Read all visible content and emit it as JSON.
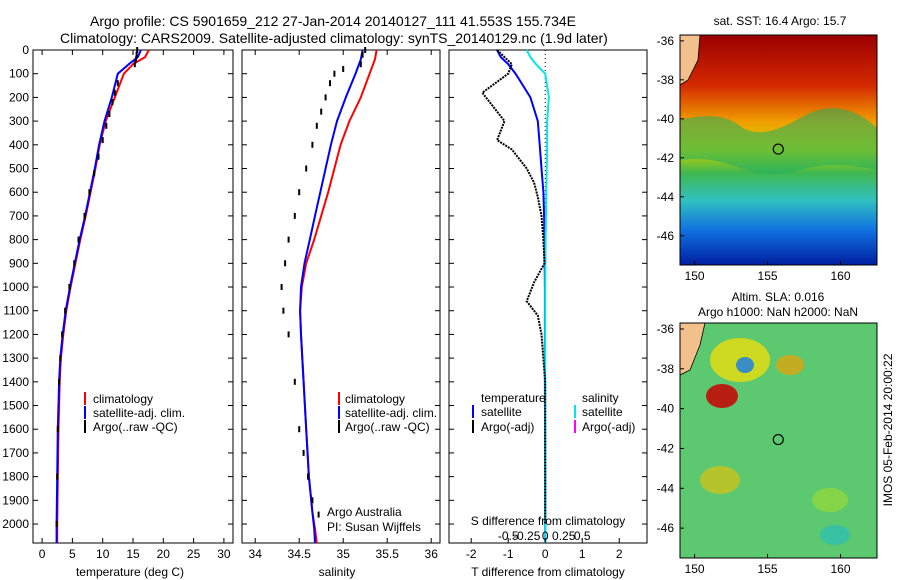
{
  "header": {
    "title_line1": "Argo profile: CS 5901659_212 27-Jan-2014 20140127_111 41.553S 155.734E",
    "title_line2": "Climatology: CARS2009. Satellite-adjusted climatology: synTS_20140129.nc (1.9d later)"
  },
  "colors": {
    "climatology": "#ff0000",
    "satellite": "#0000ff",
    "argo": "#000000",
    "sal_satellite": "#00e5ee",
    "sal_argo": "#ff00ff"
  },
  "chart_data": [
    {
      "type": "line",
      "id": "temperature",
      "xlabel": "temperature (deg C)",
      "ylabel": "",
      "xlim": [
        -1.5,
        31.5
      ],
      "ylim": [
        2080,
        0
      ],
      "xticks": [
        0,
        5,
        10,
        15,
        20,
        25,
        30
      ],
      "xtick_labels": [
        "0",
        "5",
        "10",
        "15",
        "20",
        "25",
        "30"
      ],
      "yticks": [
        0,
        100,
        200,
        300,
        400,
        500,
        600,
        700,
        800,
        900,
        1000,
        1100,
        1200,
        1300,
        1400,
        1500,
        1600,
        1700,
        1800,
        1900,
        2000
      ],
      "ytick_labels": [
        "0",
        "100",
        "200",
        "300",
        "400",
        "500",
        "600",
        "700",
        "800",
        "900",
        "1000",
        "1100",
        "1200",
        "1300",
        "1400",
        "1500",
        "1600",
        "1700",
        "1800",
        "1900",
        "2000"
      ],
      "legend": [
        "climatology",
        "satellite-adj. clim.",
        "Argo(..raw -QC)"
      ],
      "series": [
        {
          "name": "climatology",
          "style": "line",
          "color": "#ff0000",
          "x": [
            17.6,
            17.0,
            15.0,
            13.5,
            12.0,
            10.5,
            9.5,
            8.8,
            8.0,
            7.2,
            6.3,
            5.5,
            4.7,
            4.0,
            3.5,
            3.1,
            2.9,
            2.7,
            2.6,
            2.5,
            2.5
          ],
          "y": [
            0,
            30,
            60,
            100,
            200,
            300,
            400,
            500,
            600,
            700,
            800,
            900,
            1000,
            1100,
            1200,
            1300,
            1400,
            1600,
            1800,
            2000,
            2080
          ]
        },
        {
          "name": "satellite-adj. clim.",
          "style": "line",
          "color": "#0000ff",
          "x": [
            16.3,
            15.8,
            14.3,
            12.5,
            11.5,
            10.3,
            9.4,
            8.7,
            7.9,
            7.1,
            6.2,
            5.4,
            4.6,
            3.9,
            3.4,
            3.0,
            2.8,
            2.6,
            2.5,
            2.4,
            2.4
          ],
          "y": [
            0,
            30,
            60,
            100,
            200,
            300,
            400,
            500,
            600,
            700,
            800,
            900,
            1000,
            1100,
            1200,
            1300,
            1400,
            1600,
            1800,
            2000,
            2080
          ]
        },
        {
          "name": "Argo(..raw -QC)",
          "style": "dots",
          "color": "#000000",
          "x": [
            15.7,
            15.6,
            15.5,
            15.3,
            12.5,
            12.0,
            11.6,
            11.1,
            10.6,
            10.0,
            9.3,
            8.6,
            7.8,
            7.0,
            6.0,
            5.3,
            4.5,
            3.8,
            3.3,
            3.0,
            2.8,
            2.6,
            2.5,
            2.4
          ],
          "y": [
            0,
            20,
            40,
            60,
            140,
            180,
            220,
            270,
            320,
            380,
            450,
            520,
            600,
            700,
            800,
            900,
            1000,
            1100,
            1200,
            1300,
            1400,
            1600,
            1800,
            2000
          ]
        }
      ]
    },
    {
      "type": "line",
      "id": "salinity",
      "xlabel": "salinity",
      "xlim": [
        33.85,
        36.1
      ],
      "ylim": [
        2080,
        0
      ],
      "xticks": [
        34,
        34.5,
        35,
        35.5,
        36
      ],
      "xtick_labels": [
        "34",
        "34.5",
        "35",
        "35.5",
        "36"
      ],
      "legend": [
        "climatology",
        "satellite-adj. clim.",
        "Argo(..raw -QC)"
      ],
      "annotations": [
        "Argo Australia",
        "PI: Susan Wijffels"
      ],
      "series": [
        {
          "name": "climatology",
          "style": "line",
          "color": "#ff0000",
          "x": [
            35.38,
            35.36,
            35.3,
            35.2,
            35.07,
            34.97,
            34.9,
            34.83,
            34.75,
            34.67,
            34.58,
            34.53,
            34.51,
            34.52,
            34.55,
            34.58,
            34.61,
            34.65,
            34.68,
            34.7
          ],
          "y": [
            0,
            40,
            100,
            200,
            300,
            400,
            500,
            600,
            700,
            800,
            900,
            1000,
            1100,
            1200,
            1400,
            1600,
            1800,
            1950,
            2020,
            2080
          ]
        },
        {
          "name": "satellite-adj. clim.",
          "style": "line",
          "color": "#0000ff",
          "x": [
            35.22,
            35.2,
            35.14,
            35.03,
            34.93,
            34.86,
            34.8,
            34.74,
            34.68,
            34.62,
            34.56,
            34.52,
            34.51,
            34.52,
            34.55,
            34.58,
            34.61,
            34.65,
            34.67,
            34.68
          ],
          "y": [
            0,
            40,
            100,
            200,
            300,
            400,
            500,
            600,
            700,
            800,
            900,
            1000,
            1100,
            1200,
            1400,
            1600,
            1800,
            1950,
            2020,
            2080
          ]
        },
        {
          "name": "Argo(..raw -QC)",
          "style": "dots",
          "color": "#000000",
          "x": [
            35.25,
            35.22,
            35.2,
            35.0,
            34.9,
            34.85,
            34.8,
            34.75,
            34.7,
            34.65,
            34.58,
            34.5,
            34.45,
            34.38,
            34.34,
            34.3,
            34.32,
            34.38,
            34.45,
            34.5,
            34.55,
            34.6,
            34.65,
            34.72
          ],
          "y": [
            0,
            20,
            60,
            80,
            100,
            140,
            200,
            260,
            320,
            400,
            500,
            600,
            700,
            800,
            900,
            1000,
            1100,
            1200,
            1400,
            1600,
            1700,
            1800,
            1900,
            1960
          ]
        }
      ]
    },
    {
      "type": "line",
      "id": "differences",
      "xlabel": "T difference from climatology",
      "top_axis_label": "S difference from climatology",
      "xlim": [
        -2.6,
        2.75
      ],
      "ylim": [
        2080,
        0
      ],
      "xticks": [
        -2,
        -1,
        0,
        1,
        2
      ],
      "xtick_labels": [
        "-2",
        "-1",
        "0",
        "1",
        "2"
      ],
      "top_xticks": [
        -0.5,
        -0.25,
        0,
        0.25,
        0.5
      ],
      "top_xtick_labels": [
        "-0.5",
        "-0.25",
        "0",
        "0.25",
        "0.5"
      ],
      "legend_temperature": {
        "title": "temperature",
        "items": [
          "satellite",
          "Argo(-adj)"
        ]
      },
      "legend_salinity": {
        "title": "salinity",
        "items": [
          "satellite",
          "Argo(-adj)"
        ]
      },
      "series": [
        {
          "name": "temperature satellite",
          "style": "line",
          "color": "#0000ff",
          "x": [
            -1.3,
            -1.2,
            -1.0,
            -0.8,
            -0.4,
            -0.2,
            -0.15,
            -0.1,
            -0.05,
            -0.03,
            -0.02,
            -0.01,
            -0.01,
            0.0,
            0.0
          ],
          "y": [
            0,
            30,
            60,
            100,
            200,
            300,
            400,
            500,
            600,
            700,
            800,
            1000,
            1400,
            1800,
            2080
          ]
        },
        {
          "name": "salinity satellite",
          "style": "line",
          "color": "#00e5ee",
          "x": [
            -0.5,
            -0.4,
            -0.25,
            0.0,
            0.1,
            0.05,
            0.05,
            0.04,
            0.03,
            0.02,
            0.01,
            0.0,
            0.0,
            0.0
          ],
          "y": [
            0,
            30,
            60,
            100,
            200,
            300,
            400,
            500,
            600,
            700,
            800,
            1000,
            1400,
            2080
          ]
        },
        {
          "name": "Argo(-adj)",
          "style": "dots",
          "color": "#000000",
          "x": [
            -1.3,
            -1.1,
            -0.9,
            -1.0,
            -1.7,
            -1.4,
            -1.1,
            -1.3,
            -0.9,
            -0.5,
            -0.3,
            -0.2,
            -0.1,
            -0.05,
            -0.02,
            -0.3,
            -0.5,
            -0.2,
            -0.1,
            0.0,
            0.0,
            0.0
          ],
          "y": [
            0,
            30,
            60,
            100,
            180,
            240,
            300,
            380,
            420,
            500,
            560,
            620,
            700,
            800,
            900,
            980,
            1060,
            1120,
            1200,
            1400,
            1700,
            2000
          ]
        }
      ]
    },
    {
      "type": "heatmap",
      "id": "sst_map",
      "title": "sat. SST: 16.4 Argo: 15.7",
      "xlim": [
        149,
        162.5
      ],
      "ylim": [
        -47.5,
        -35.7
      ],
      "xticks": [
        150,
        155,
        160
      ],
      "xtick_labels": [
        "150",
        "155",
        "160"
      ],
      "yticks": [
        -36,
        -38,
        -40,
        -42,
        -44,
        -46
      ],
      "ytick_labels": [
        "-36",
        "-38",
        "-40",
        "-42",
        "-44",
        "-46"
      ],
      "marker": {
        "x": 155.734,
        "y": -41.553
      }
    },
    {
      "type": "heatmap",
      "id": "sla_map",
      "title_line1": "Altim. SLA: 0.016",
      "title_line2": "Argo h1000: NaN h2000: NaN",
      "xlim": [
        149,
        162.5
      ],
      "ylim": [
        -47.5,
        -35.7
      ],
      "xticks": [
        150,
        155,
        160
      ],
      "xtick_labels": [
        "150",
        "155",
        "160"
      ],
      "yticks": [
        -36,
        -38,
        -40,
        -42,
        -44,
        -46
      ],
      "ytick_labels": [
        "-36",
        "-38",
        "-40",
        "-42",
        "-44",
        "-46"
      ],
      "marker": {
        "x": 155.734,
        "y": -41.553
      }
    }
  ],
  "footer": {
    "stamp": "IMOS 05-Feb-2014 20:00:22"
  }
}
